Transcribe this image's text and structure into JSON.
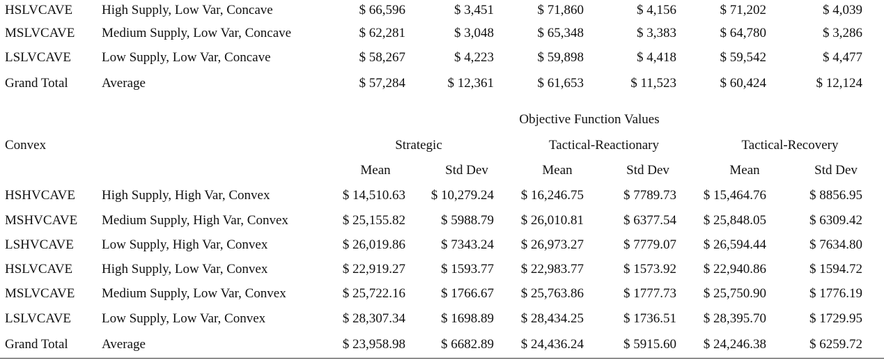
{
  "top_rows": [
    {
      "code": "HSLVCAVE",
      "desc": "High Supply, Low Var, Concave",
      "vals": [
        "$ 66,596",
        "$ 3,451",
        "$ 71,860",
        "$ 4,156",
        "$ 71,202",
        "$ 4,039"
      ]
    },
    {
      "code": "MSLVCAVE",
      "desc": "Medium Supply, Low Var, Concave",
      "vals": [
        "$ 62,281",
        "$ 3,048",
        "$ 65,348",
        "$ 3,383",
        "$ 64,780",
        "$ 3,286"
      ]
    },
    {
      "code": "LSLVCAVE",
      "desc": "Low Supply, Low Var, Concave",
      "vals": [
        "$ 58,267",
        "$ 4,223",
        "$ 59,898",
        "$ 4,418",
        "$ 59,542",
        "$ 4,477"
      ]
    },
    {
      "code": "Grand Total",
      "desc": "Average",
      "vals": [
        "$ 57,284",
        "$ 12,361",
        "$ 61,653",
        "$ 11,523",
        "$ 60,424",
        "$ 12,124"
      ]
    }
  ],
  "header": {
    "objective": "Objective Function Values",
    "section": "Convex",
    "groups": [
      "Strategic",
      "Tactical-Reactionary",
      "Tactical-Recovery"
    ],
    "subheaders": [
      "Mean",
      "Std Dev",
      "Mean",
      "Std Dev",
      "Mean",
      "Std Dev"
    ]
  },
  "convex_rows": [
    {
      "code": "HSHVCAVE",
      "desc": "High Supply, High Var, Convex",
      "vals": [
        "$ 14,510.63",
        "$ 10,279.24",
        "$ 16,246.75",
        "$ 7789.73",
        "$ 15,464.76",
        "$ 8856.95"
      ]
    },
    {
      "code": "MSHVCAVE",
      "desc": "Medium Supply, High Var, Convex",
      "vals": [
        "$ 25,155.82",
        "$ 5988.79",
        "$ 26,010.81",
        "$ 6377.54",
        "$ 25,848.05",
        "$ 6309.42"
      ]
    },
    {
      "code": "LSHVCAVE",
      "desc": "Low Supply, High Var, Convex",
      "vals": [
        "$ 26,019.86",
        "$ 7343.24",
        "$ 26,973.27",
        "$ 7779.07",
        "$ 26,594.44",
        "$ 7634.80"
      ]
    },
    {
      "code": "HSLVCAVE",
      "desc": "High Supply, Low Var, Convex",
      "vals": [
        "$ 22,919.27",
        "$ 1593.77",
        "$ 22,983.77",
        "$ 1573.92",
        "$ 22,940.86",
        "$ 1594.72"
      ]
    },
    {
      "code": "MSLVCAVE",
      "desc": "Medium Supply, Low Var, Convex",
      "vals": [
        "$ 25,722.16",
        "$ 1766.67",
        "$ 25,763.86",
        "$ 1777.73",
        "$ 25,750.90",
        "$ 1776.19"
      ]
    },
    {
      "code": "LSLVCAVE",
      "desc": "Low Supply, Low Var, Convex",
      "vals": [
        "$ 28,307.34",
        "$ 1698.89",
        "$ 28,434.25",
        "$ 1736.51",
        "$ 28,395.70",
        "$ 1729.95"
      ]
    },
    {
      "code": "Grand Total",
      "desc": "Average",
      "vals": [
        "$ 23,958.98",
        "$ 6682.89",
        "$ 24,436.24",
        "$ 5915.60",
        "$ 24,246.38",
        "$ 6259.72"
      ]
    }
  ]
}
